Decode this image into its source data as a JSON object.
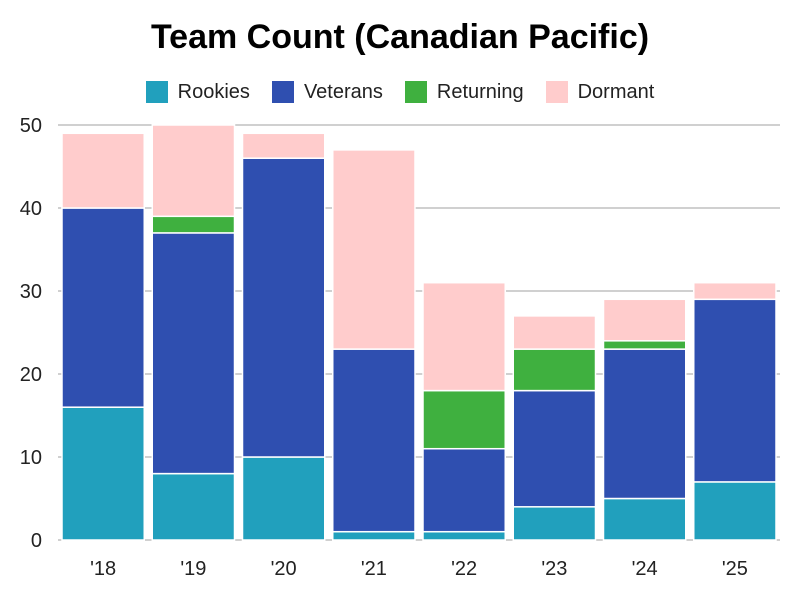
{
  "chart_data": {
    "type": "bar",
    "stacked": true,
    "title": "Team Count (Canadian Pacific)",
    "xlabel": "",
    "ylabel": "",
    "ylim": [
      0,
      50
    ],
    "yticks": [
      0,
      10,
      20,
      30,
      40,
      50
    ],
    "grid": true,
    "legend_position": "top",
    "categories": [
      "'18",
      "'19",
      "'20",
      "'21",
      "'22",
      "'23",
      "'24",
      "'25"
    ],
    "series": [
      {
        "name": "Rookies",
        "color": "#21a0bd",
        "values": [
          16,
          8,
          10,
          1,
          1,
          4,
          5,
          7
        ]
      },
      {
        "name": "Veterans",
        "color": "#2f4fb0",
        "values": [
          24,
          29,
          36,
          22,
          10,
          14,
          18,
          22
        ]
      },
      {
        "name": "Returning",
        "color": "#3fb03f",
        "values": [
          0,
          2,
          0,
          0,
          7,
          5,
          1,
          0
        ]
      },
      {
        "name": "Dormant",
        "color": "#ffcccc",
        "values": [
          9,
          11,
          3,
          24,
          13,
          4,
          5,
          2
        ]
      }
    ]
  }
}
